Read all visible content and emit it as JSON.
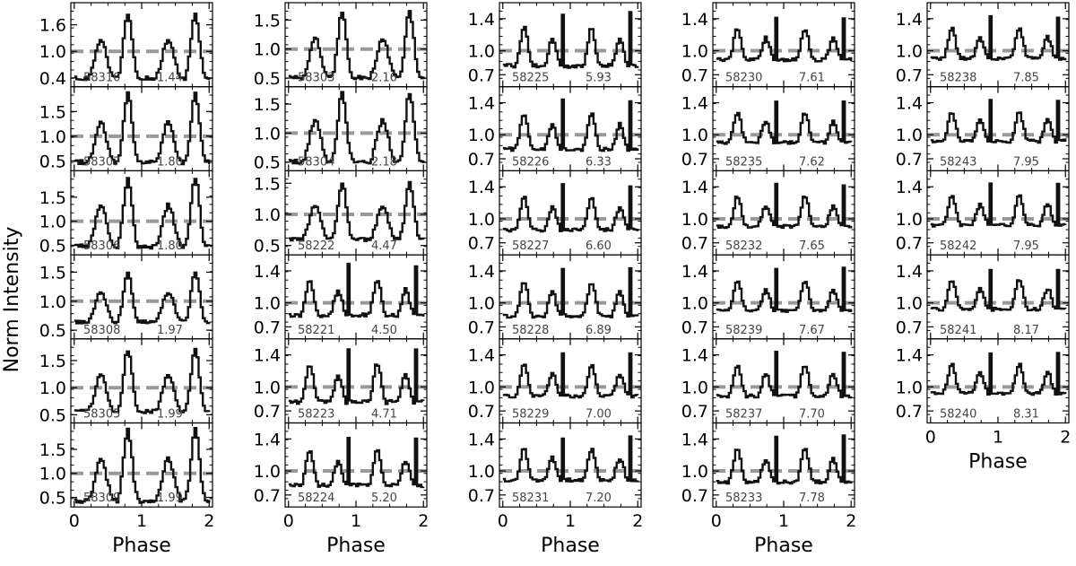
{
  "figure": {
    "ylabel": "Norm Intensity",
    "xlabel": "Phase",
    "x_ticks": [
      0,
      1,
      2
    ],
    "ref_line": 1.0,
    "colors": {
      "profile": "#111111",
      "ref_line": "#999999",
      "frame": "#000000",
      "annotation": "#444444"
    }
  },
  "chart_data": {
    "type": "line",
    "xlabel": "Phase",
    "ylabel": "Norm Intensity",
    "xlim": [
      -0.05,
      2.05
    ],
    "columns": [
      {
        "x_tick_labels": [
          "0",
          "1",
          "2"
        ],
        "panels": [
          {
            "mjd": "58310",
            "value": "1.44",
            "ylim": [
              0.2,
              2.1
            ],
            "yticks": [
              "1.6",
              "1.0",
              "0.4"
            ],
            "shape": "broad",
            "peak": 1.85,
            "trough": 0.32
          },
          {
            "mjd": "58307",
            "value": "1.80",
            "ylim": [
              0.3,
              2.0
            ],
            "yticks": [
              "1.5",
              "1.0",
              "0.5"
            ],
            "shape": "broad",
            "peak": 1.85,
            "trough": 0.4
          },
          {
            "mjd": "58306",
            "value": "1.80",
            "ylim": [
              0.3,
              2.05
            ],
            "yticks": [
              "1.5",
              "1.0",
              "0.5"
            ],
            "shape": "broad",
            "peak": 1.9,
            "trough": 0.4
          },
          {
            "mjd": "58308",
            "value": "1.97",
            "ylim": [
              0.35,
              1.8
            ],
            "yticks": [
              "1.5",
              "1.0",
              "0.5"
            ],
            "shape": "broad",
            "peak": 1.5,
            "trough": 0.6
          },
          {
            "mjd": "58305",
            "value": "1.99",
            "ylim": [
              0.35,
              1.9
            ],
            "yticks": [
              "1.5",
              "1.0",
              "0.5"
            ],
            "shape": "broad",
            "peak": 1.7,
            "trough": 0.5
          },
          {
            "mjd": "58309",
            "value": "1.99",
            "ylim": [
              0.3,
              2.05
            ],
            "yticks": [
              "1.5",
              "1.0",
              "0.5"
            ],
            "shape": "broad",
            "peak": 1.9,
            "trough": 0.35
          }
        ]
      },
      {
        "x_tick_labels": [
          "0",
          "1",
          "2"
        ],
        "panels": [
          {
            "mjd": "58303",
            "value": "2.16",
            "ylim": [
              0.35,
              1.8
            ],
            "yticks": [
              "1.5",
              "1.0",
              "0.5"
            ],
            "shape": "broad",
            "peak": 1.65,
            "trough": 0.45
          },
          {
            "mjd": "58304",
            "value": "2.18",
            "ylim": [
              0.35,
              1.8
            ],
            "yticks": [
              "1.5",
              "1.0",
              "0.5"
            ],
            "shape": "broad",
            "peak": 1.7,
            "trough": 0.45
          },
          {
            "mjd": "58222",
            "value": "4.47",
            "ylim": [
              0.35,
              1.7
            ],
            "yticks": [
              "1.5",
              "1.0",
              "0.5"
            ],
            "shape": "broad",
            "peak": 1.5,
            "trough": 0.55
          },
          {
            "mjd": "58221",
            "value": "4.50",
            "ylim": [
              0.55,
              1.6
            ],
            "yticks": [
              "1.4",
              "1.0",
              "0.7"
            ],
            "shape": "spike",
            "peak": 1.5,
            "trough": 0.72
          },
          {
            "mjd": "58223",
            "value": "4.71",
            "ylim": [
              0.55,
              1.6
            ],
            "yticks": [
              "1.4",
              "1.0",
              "0.7"
            ],
            "shape": "spike",
            "peak": 1.5,
            "trough": 0.68
          },
          {
            "mjd": "58224",
            "value": "5.20",
            "ylim": [
              0.55,
              1.6
            ],
            "yticks": [
              "1.4",
              "1.0",
              "0.7"
            ],
            "shape": "spike",
            "peak": 1.45,
            "trough": 0.7
          }
        ]
      },
      {
        "x_tick_labels": [
          "0",
          "1",
          "2"
        ],
        "panels": [
          {
            "mjd": "58225",
            "value": "5.93",
            "ylim": [
              0.55,
              1.6
            ],
            "yticks": [
              "1.4",
              "1.0",
              "0.7"
            ],
            "shape": "spike",
            "peak": 1.5,
            "trough": 0.68
          },
          {
            "mjd": "58226",
            "value": "6.33",
            "ylim": [
              0.55,
              1.6
            ],
            "yticks": [
              "1.4",
              "1.0",
              "0.7"
            ],
            "shape": "spike",
            "peak": 1.45,
            "trough": 0.7
          },
          {
            "mjd": "58227",
            "value": "6.60",
            "ylim": [
              0.55,
              1.6
            ],
            "yticks": [
              "1.4",
              "1.0",
              "0.7"
            ],
            "shape": "spike",
            "peak": 1.45,
            "trough": 0.75
          },
          {
            "mjd": "58228",
            "value": "6.89",
            "ylim": [
              0.55,
              1.6
            ],
            "yticks": [
              "1.4",
              "1.0",
              "0.7"
            ],
            "shape": "spike",
            "peak": 1.45,
            "trough": 0.72
          },
          {
            "mjd": "58229",
            "value": "7.00",
            "ylim": [
              0.55,
              1.6
            ],
            "yticks": [
              "1.4",
              "1.0",
              "0.7"
            ],
            "shape": "spike",
            "peak": 1.45,
            "trough": 0.78
          },
          {
            "mjd": "58231",
            "value": "7.20",
            "ylim": [
              0.55,
              1.6
            ],
            "yticks": [
              "1.4",
              "1.0",
              "0.7"
            ],
            "shape": "spike",
            "peak": 1.45,
            "trough": 0.78
          }
        ]
      },
      {
        "x_tick_labels": [
          "0",
          "1",
          "2"
        ],
        "panels": [
          {
            "mjd": "58230",
            "value": "7.61",
            "ylim": [
              0.55,
              1.6
            ],
            "yticks": [
              "1.4",
              "1.0",
              "0.7"
            ],
            "shape": "spike",
            "peak": 1.45,
            "trough": 0.78
          },
          {
            "mjd": "58235",
            "value": "7.62",
            "ylim": [
              0.55,
              1.6
            ],
            "yticks": [
              "1.4",
              "1.0",
              "0.7"
            ],
            "shape": "spike",
            "peak": 1.45,
            "trough": 0.8
          },
          {
            "mjd": "58232",
            "value": "7.65",
            "ylim": [
              0.55,
              1.6
            ],
            "yticks": [
              "1.4",
              "1.0",
              "0.7"
            ],
            "shape": "spike",
            "peak": 1.45,
            "trough": 0.8
          },
          {
            "mjd": "58239",
            "value": "7.67",
            "ylim": [
              0.55,
              1.6
            ],
            "yticks": [
              "1.4",
              "1.0",
              "0.7"
            ],
            "shape": "spike",
            "peak": 1.45,
            "trough": 0.8
          },
          {
            "mjd": "58237",
            "value": "7.70",
            "ylim": [
              0.55,
              1.6
            ],
            "yticks": [
              "1.4",
              "1.0",
              "0.7"
            ],
            "shape": "spike",
            "peak": 1.45,
            "trough": 0.78
          },
          {
            "mjd": "58233",
            "value": "7.78",
            "ylim": [
              0.55,
              1.6
            ],
            "yticks": [
              "1.4",
              "1.0",
              "0.7"
            ],
            "shape": "spike",
            "peak": 1.45,
            "trough": 0.75
          }
        ]
      },
      {
        "x_tick_labels": [
          "0",
          "1",
          "2"
        ],
        "panels": [
          {
            "mjd": "58238",
            "value": "7.85",
            "ylim": [
              0.55,
              1.6
            ],
            "yticks": [
              "1.4",
              "1.0",
              "0.7"
            ],
            "shape": "spike",
            "peak": 1.45,
            "trough": 0.8
          },
          {
            "mjd": "58243",
            "value": "7.95",
            "ylim": [
              0.55,
              1.6
            ],
            "yticks": [
              "1.4",
              "1.0",
              "0.7"
            ],
            "shape": "spike",
            "peak": 1.45,
            "trough": 0.82
          },
          {
            "mjd": "58242",
            "value": "7.95",
            "ylim": [
              0.55,
              1.6
            ],
            "yticks": [
              "1.4",
              "1.0",
              "0.7"
            ],
            "shape": "spike",
            "peak": 1.45,
            "trough": 0.82
          },
          {
            "mjd": "58241",
            "value": "8.17",
            "ylim": [
              0.55,
              1.6
            ],
            "yticks": [
              "1.4",
              "1.0",
              "0.7"
            ],
            "shape": "spike",
            "peak": 1.45,
            "trough": 0.82
          },
          {
            "mjd": "58240",
            "value": "8.31",
            "ylim": [
              0.55,
              1.6
            ],
            "yticks": [
              "1.4",
              "1.0",
              "0.7"
            ],
            "shape": "spike",
            "peak": 1.45,
            "trough": 0.82
          }
        ]
      }
    ]
  }
}
